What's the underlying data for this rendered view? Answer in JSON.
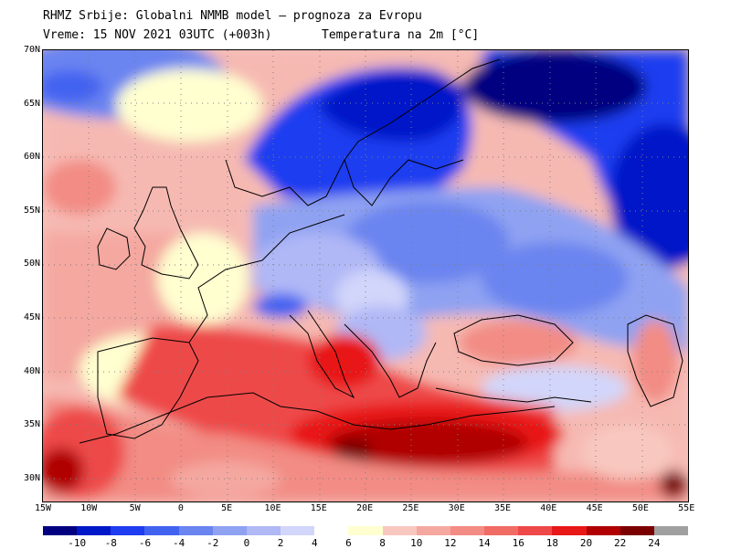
{
  "header": {
    "line1": "RHMZ Srbije: Globalni NMMB model — prognoza za Evropu",
    "line2": "Vreme: 15 NOV 2021 03UTC (+003h)",
    "variable": "Temperatura na 2m [°C]"
  },
  "map": {
    "latitude_labels": [
      "70N",
      "65N",
      "60N",
      "55N",
      "50N",
      "45N",
      "40N",
      "35N",
      "30N"
    ],
    "longitude_labels": [
      "15W",
      "10W",
      "5W",
      "0",
      "5E",
      "10E",
      "15E",
      "20E",
      "25E",
      "30E",
      "35E",
      "40E",
      "45E",
      "50E",
      "55E"
    ],
    "grid_lines": true
  },
  "legend": {
    "labels": [
      "-10",
      "-8",
      "-6",
      "-4",
      "-2",
      "0",
      "2",
      "4",
      "6",
      "8",
      "10",
      "12",
      "14",
      "16",
      "18",
      "20",
      "22",
      "24"
    ],
    "colors": [
      "#000080",
      "#0018c8",
      "#1f3cf0",
      "#4262f0",
      "#6a84f0",
      "#8fa2f2",
      "#b0b8f6",
      "#d2d6fa",
      "#ffffff",
      "#ffffd0",
      "#f8c8c0",
      "#f4a8a0",
      "#f28c84",
      "#f06c64",
      "#ee4848",
      "#e81818",
      "#b00000",
      "#7a0000",
      "#a0a0a0"
    ]
  }
}
